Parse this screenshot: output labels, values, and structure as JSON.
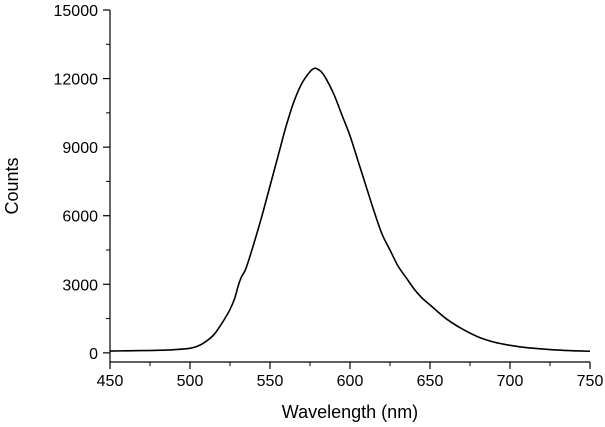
{
  "chart_data": {
    "type": "line",
    "title": "",
    "xlabel": "Wavelength (nm)",
    "ylabel": "Counts",
    "xlim": [
      450,
      750
    ],
    "ylim": [
      -400,
      15000
    ],
    "x_ticks": [
      450,
      500,
      550,
      600,
      650,
      700,
      750
    ],
    "y_ticks": [
      0,
      3000,
      6000,
      9000,
      12000,
      15000
    ],
    "x_tick_labels": [
      "450",
      "500",
      "550",
      "600",
      "650",
      "700",
      "750"
    ],
    "y_tick_labels": [
      "0",
      "3000",
      "6000",
      "9000",
      "12000",
      "15000"
    ],
    "grid": false,
    "legend": "none",
    "series": [
      {
        "color": "#000000",
        "x": [
          450,
          460,
          470,
          480,
          490,
          500,
          505,
          510,
          515,
          520,
          525,
          528,
          530,
          532,
          535,
          540,
          545,
          550,
          555,
          560,
          565,
          570,
          575,
          578,
          580,
          582,
          585,
          590,
          595,
          600,
          605,
          610,
          615,
          620,
          625,
          630,
          635,
          640,
          645,
          650,
          660,
          670,
          680,
          690,
          700,
          710,
          720,
          730,
          740,
          750
        ],
        "y": [
          80,
          90,
          100,
          110,
          140,
          200,
          300,
          500,
          800,
          1300,
          1900,
          2400,
          2900,
          3300,
          3700,
          4800,
          6000,
          7300,
          8600,
          9900,
          11000,
          11800,
          12300,
          12450,
          12400,
          12300,
          12000,
          11300,
          10400,
          9500,
          8400,
          7300,
          6200,
          5200,
          4500,
          3800,
          3300,
          2800,
          2400,
          2100,
          1500,
          1050,
          700,
          470,
          330,
          230,
          170,
          120,
          90,
          70
        ]
      }
    ]
  }
}
